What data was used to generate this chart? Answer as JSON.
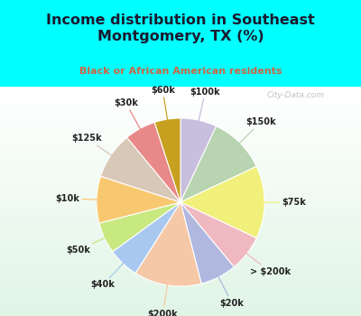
{
  "title": "Income distribution in Southeast\nMontgomery, TX (%)",
  "subtitle": "Black or African American residents",
  "title_color": "#1a1a2e",
  "subtitle_color": "#cc6644",
  "background_color": "#00ffff",
  "watermark": "City-Data.com",
  "labels": [
    "$100k",
    "$150k",
    "$75k",
    "> $200k",
    "$20k",
    "$200k",
    "$40k",
    "$50k",
    "$10k",
    "$125k",
    "$30k",
    "$60k"
  ],
  "values": [
    7,
    11,
    14,
    7,
    7,
    13,
    6,
    6,
    9,
    9,
    6,
    5
  ],
  "colors": [
    "#c8bedd",
    "#b8d4b0",
    "#f0f07a",
    "#f0b8c0",
    "#b0b8e0",
    "#f5c8a8",
    "#a8c8f0",
    "#c8e880",
    "#f8c870",
    "#d8c8b8",
    "#e88888",
    "#c8a020"
  ],
  "line_colors": [
    "#c8bedd",
    "#b8d4b0",
    "#f0f07a",
    "#f0b8c0",
    "#b0b8e0",
    "#f5c8a8",
    "#a8c8f0",
    "#c8e880",
    "#f8c870",
    "#d8c8b8",
    "#e88888",
    "#c8a020"
  ],
  "figsize": [
    4.0,
    3.5
  ],
  "dpi": 100
}
